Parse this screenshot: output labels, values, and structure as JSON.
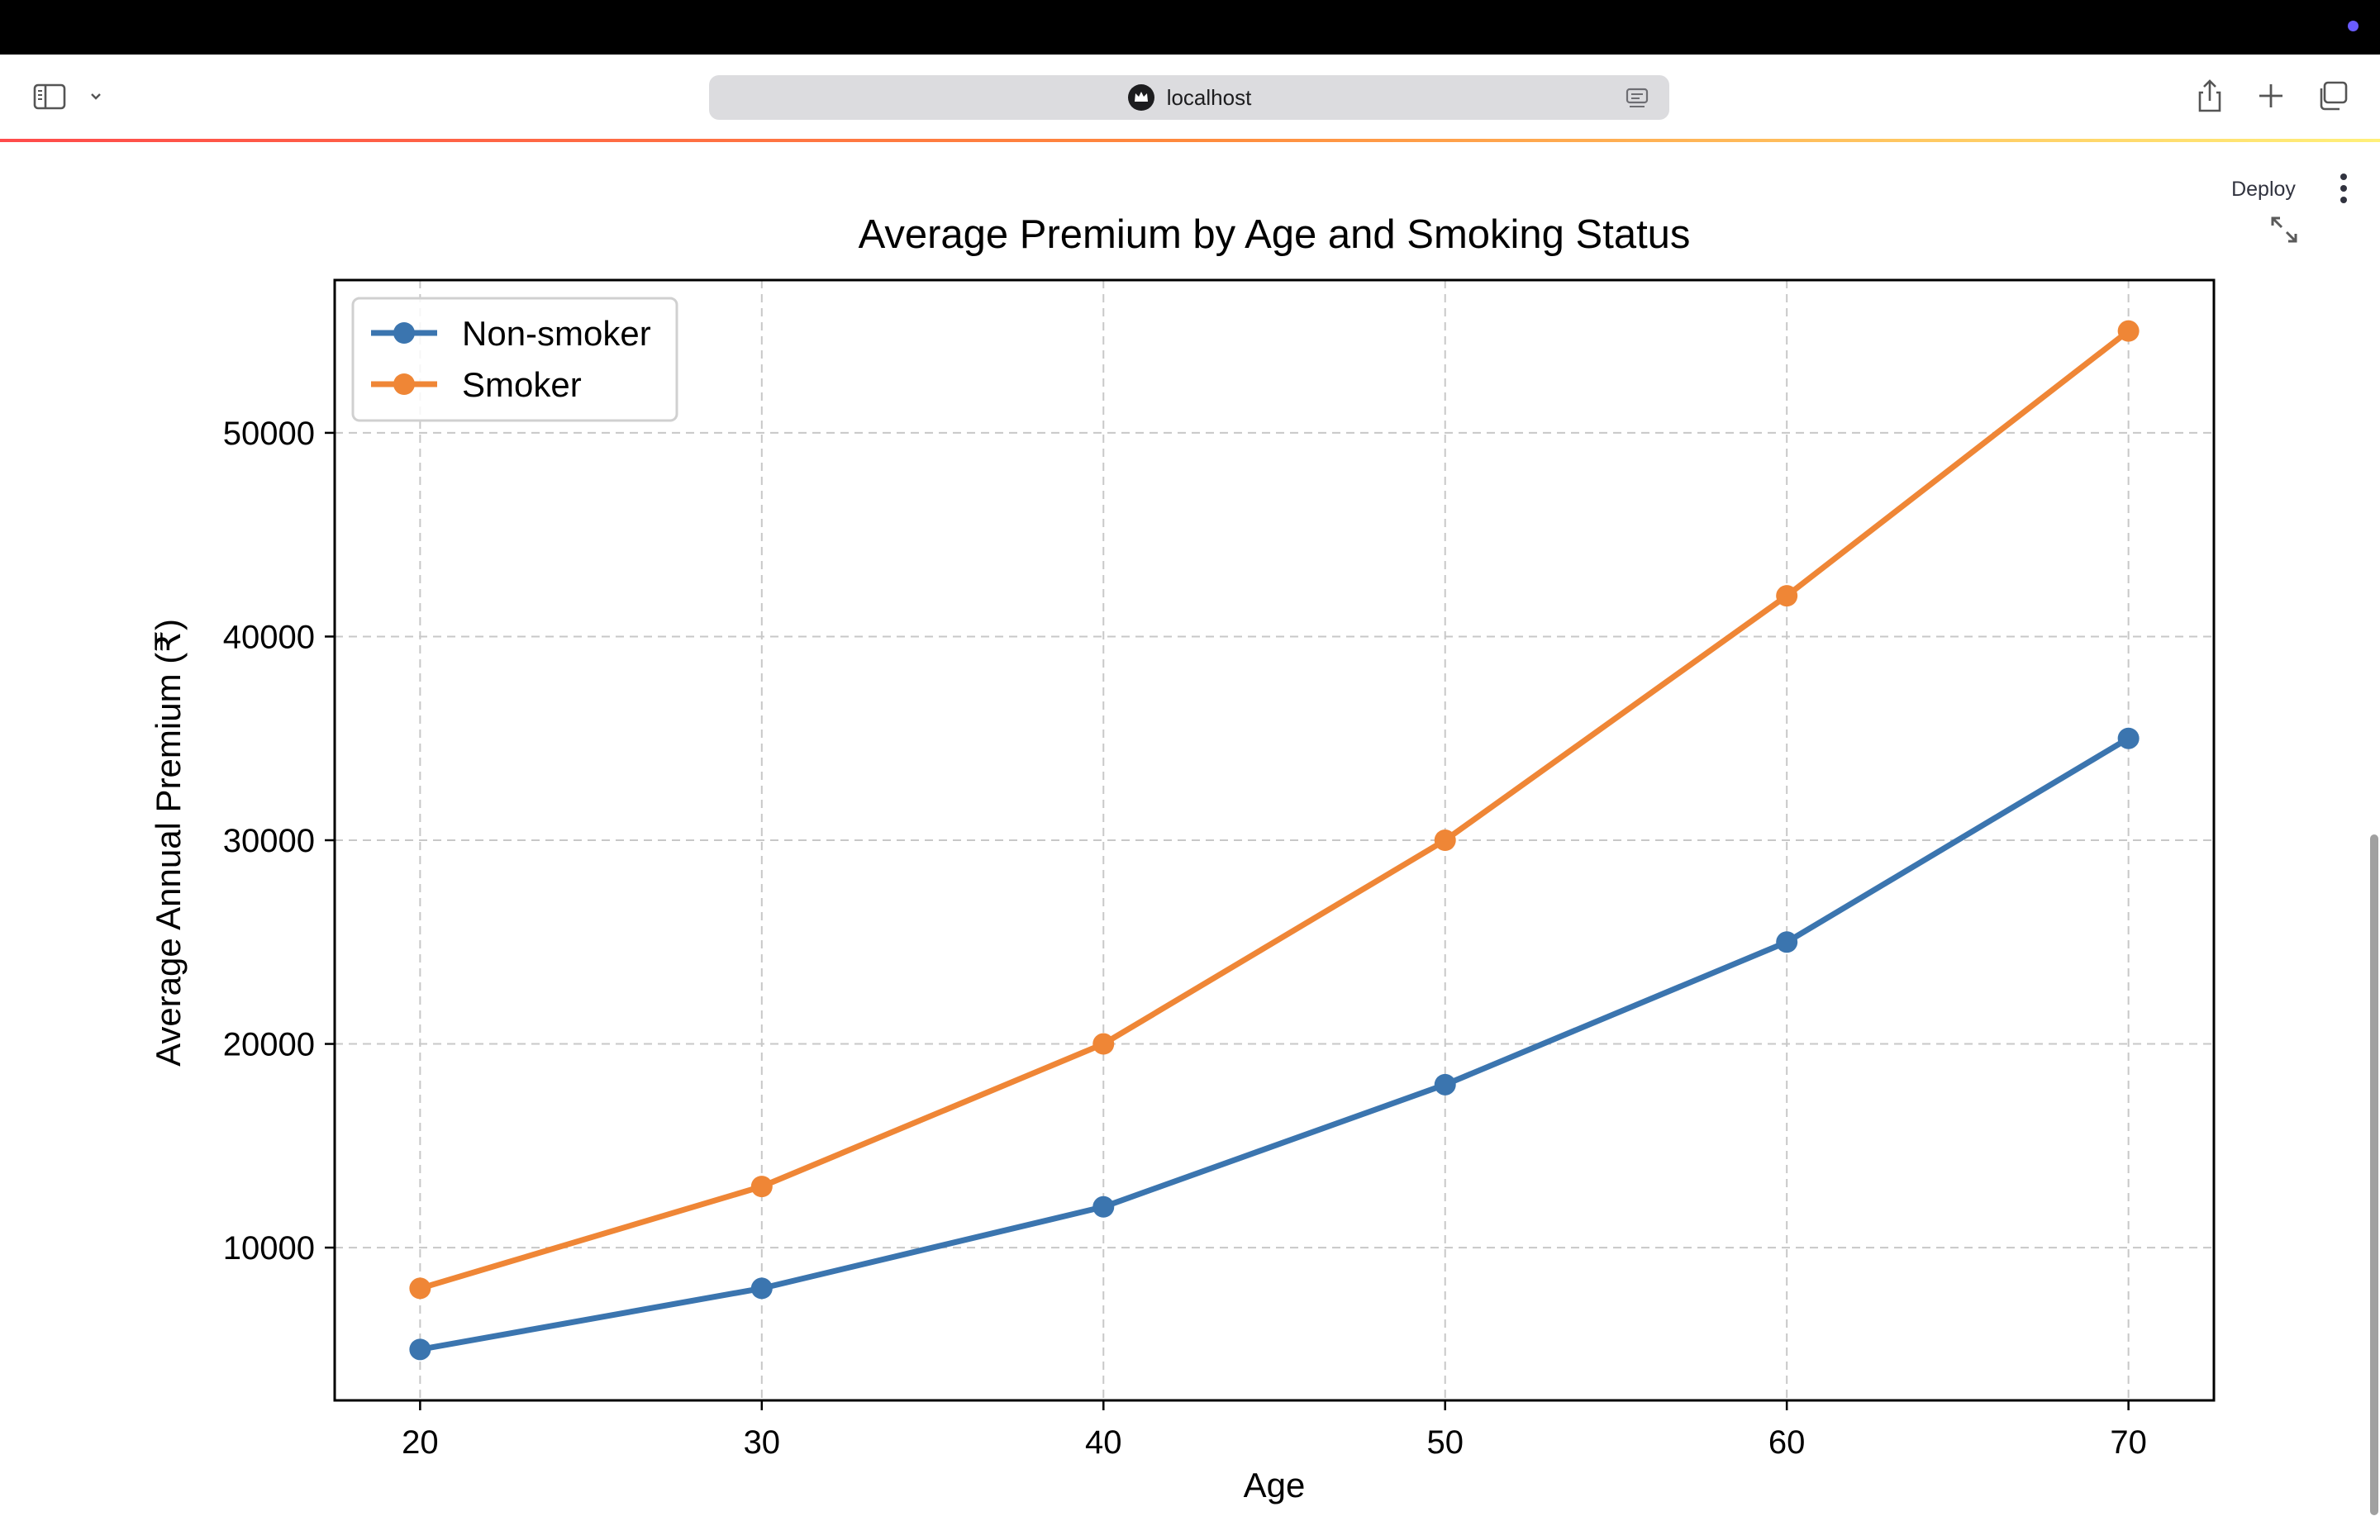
{
  "browser": {
    "address": "localhost",
    "icons": {
      "sidebar_toggle": "sidebar-icon",
      "sidebar_chevron": "chevron-down-icon",
      "site": "streamlit-crown-icon",
      "reader": "reader-mode-icon",
      "share": "share-icon",
      "new_tab": "plus-icon",
      "tabs": "tab-overview-icon"
    },
    "status_dot_color": "#6a5cff"
  },
  "app": {
    "deploy_label": "Deploy",
    "menu_icon": "vertical-ellipsis-icon",
    "expand_icon": "expand-arrows-icon",
    "loading_bar_colors": [
      "#ff4b4b",
      "#ff8a3d",
      "#fff07a"
    ]
  },
  "chart_data": {
    "type": "line",
    "title": "Average Premium by Age and Smoking Status",
    "xlabel": "Age",
    "ylabel": "Average Annual Premium (₹)",
    "x": [
      20,
      30,
      40,
      50,
      60,
      70
    ],
    "x_ticks": [
      "20",
      "30",
      "40",
      "50",
      "60",
      "70"
    ],
    "y_ticks": [
      "10000",
      "20000",
      "30000",
      "40000",
      "50000"
    ],
    "xlim": [
      17.5,
      72.5
    ],
    "ylim": [
      2500,
      57500
    ],
    "grid": true,
    "grid_style": "dashed",
    "legend_position": "upper-left",
    "markers": "circle",
    "series": [
      {
        "name": "Non-smoker",
        "color": "#3b75af",
        "values": [
          5000,
          8000,
          12000,
          18000,
          25000,
          35000
        ]
      },
      {
        "name": "Smoker",
        "color": "#ef8636",
        "values": [
          8000,
          13000,
          20000,
          30000,
          42000,
          55000
        ]
      }
    ]
  }
}
